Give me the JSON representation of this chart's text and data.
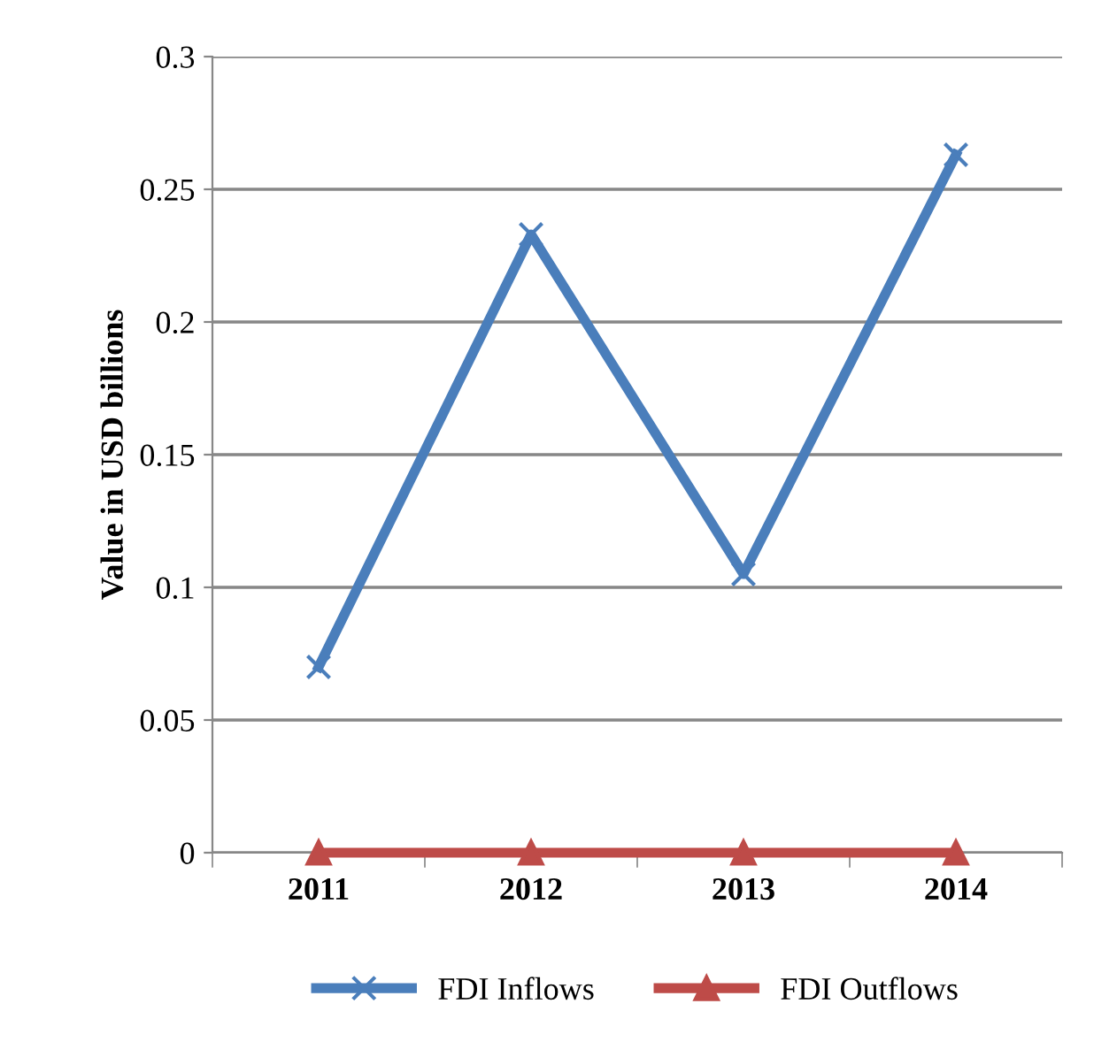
{
  "chart_data": {
    "type": "line",
    "ylabel": "Value in USD billions",
    "categories": [
      "2011",
      "2012",
      "2013",
      "2014"
    ],
    "series": [
      {
        "name": "FDI Inflows",
        "color": "#4a7ebb",
        "marker": "cross",
        "values": [
          0.07,
          0.233,
          0.105,
          0.263
        ]
      },
      {
        "name": "FDI Outflows",
        "color": "#be4b48",
        "marker": "triangle",
        "values": [
          0,
          0,
          0,
          0
        ]
      }
    ],
    "ylim": [
      0,
      0.3
    ],
    "yticks": [
      {
        "value": 0,
        "label": "0"
      },
      0.05,
      0.1,
      0.15,
      0.2,
      0.25,
      0.3
    ],
    "grid": "y",
    "legend": "bottom",
    "line_style": "solid"
  }
}
